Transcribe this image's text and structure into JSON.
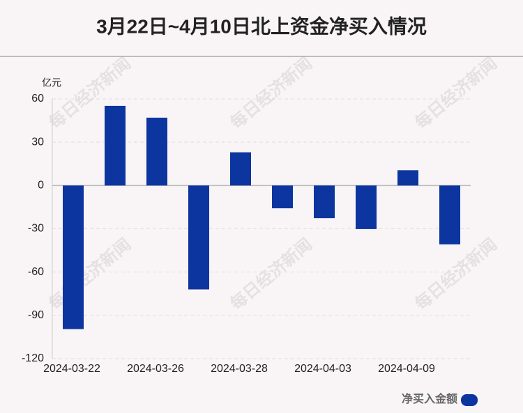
{
  "chart_data": {
    "type": "bar",
    "title": "3月22日~4月10日北上资金净买入情况",
    "unit": "亿元",
    "watermark": "每日经济新闻",
    "categories": [
      "2024-03-22",
      null,
      "2024-03-26",
      null,
      "2024-03-28",
      null,
      "2024-04-03",
      null,
      "2024-04-09",
      null
    ],
    "series": [
      {
        "name": "净买入金额",
        "color": "#0c35a0",
        "values": [
          -99.5,
          55.2,
          47.0,
          -72.0,
          23.0,
          -15.8,
          -22.6,
          -30.2,
          10.6,
          -40.8
        ]
      }
    ],
    "ylim": [
      -120,
      60
    ],
    "yticks": [
      -120,
      -90,
      -60,
      -30,
      0,
      30,
      60
    ],
    "grid": true
  }
}
